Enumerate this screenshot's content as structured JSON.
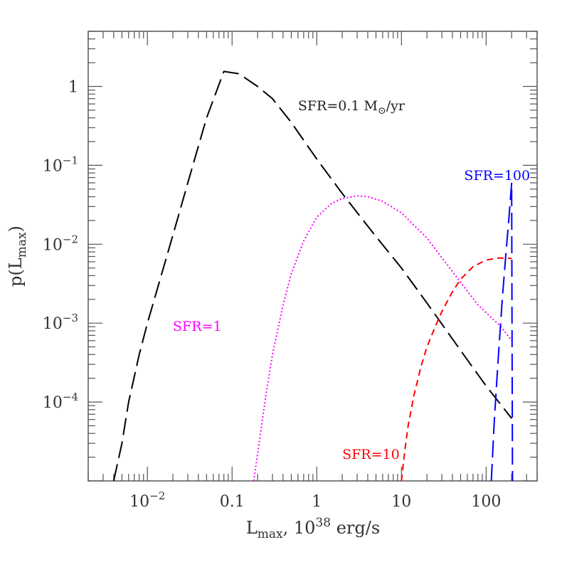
{
  "chart_data": {
    "type": "line",
    "title": "",
    "xlabel": {
      "main": "L",
      "sub": "max",
      "rest": ", 10",
      "sup": "38",
      "unit": " erg/s"
    },
    "ylabel": {
      "main": "p(L",
      "sub": "max",
      "end": ")"
    },
    "x_scale": "log",
    "y_scale": "log",
    "xlim": [
      0.002,
      400
    ],
    "ylim": [
      1e-05,
      5
    ],
    "x_ticks": [
      {
        "value": 0.01,
        "base": "10",
        "exp": "−2"
      },
      {
        "value": 0.1,
        "text": "0.1"
      },
      {
        "value": 1,
        "text": "1"
      },
      {
        "value": 10,
        "text": "10"
      },
      {
        "value": 100,
        "text": "100"
      }
    ],
    "y_ticks": [
      {
        "value": 1,
        "text": "1"
      },
      {
        "value": 0.1,
        "base": "10",
        "exp": "−1"
      },
      {
        "value": 0.01,
        "base": "10",
        "exp": "−2"
      },
      {
        "value": 0.001,
        "base": "10",
        "exp": "−3"
      },
      {
        "value": 0.0001,
        "base": "10",
        "exp": "−4"
      }
    ],
    "grid": false,
    "legend": "none",
    "series": [
      {
        "label": "SFR=0.1 M☉/yr",
        "label_main": "SFR=0.1 M",
        "label_sub": "⊙",
        "label_end": "/yr",
        "label_anchor": {
          "x": 0.6,
          "y": 0.5
        },
        "color": "#000000",
        "dash": "24 9",
        "width": 2,
        "x": [
          0.004,
          0.005,
          0.006,
          0.008,
          0.01,
          0.015,
          0.02,
          0.03,
          0.05,
          0.08,
          0.12,
          0.2,
          0.3,
          0.5,
          1,
          2,
          5,
          10,
          20,
          50,
          100,
          200
        ],
        "y": [
          1e-05,
          3e-05,
          0.0001,
          0.0004,
          0.001,
          0.0045,
          0.013,
          0.06,
          0.4,
          1.55,
          1.45,
          1.0,
          0.7,
          0.35,
          0.12,
          0.044,
          0.0125,
          0.005,
          0.0018,
          0.00045,
          0.00016,
          6.2e-05
        ]
      },
      {
        "label": "SFR=1",
        "label_anchor": {
          "x": 0.02,
          "y": 0.0008
        },
        "color": "#ff00ff",
        "dash": "2 3",
        "width": 2,
        "x": [
          0.18,
          0.2,
          0.25,
          0.3,
          0.4,
          0.5,
          0.7,
          1,
          1.5,
          2,
          3,
          4,
          6,
          10,
          20,
          40,
          80,
          150,
          200
        ],
        "y": [
          1e-05,
          2.2e-05,
          0.00012,
          0.0004,
          0.0017,
          0.0042,
          0.011,
          0.022,
          0.033,
          0.038,
          0.041,
          0.04,
          0.035,
          0.025,
          0.012,
          0.0045,
          0.0017,
          0.0009,
          0.0006
        ]
      },
      {
        "label": "SFR=10",
        "label_anchor": {
          "x": 2,
          "y": 1.9e-05
        },
        "color": "#ff0000",
        "dash": "9 6",
        "width": 2,
        "x": [
          10,
          11,
          12,
          14,
          17,
          20,
          25,
          30,
          40,
          50,
          70,
          100,
          140,
          200
        ],
        "y": [
          1e-05,
          2.5e-05,
          5e-05,
          0.00012,
          0.00028,
          0.0005,
          0.0009,
          0.0014,
          0.0025,
          0.0036,
          0.0052,
          0.0063,
          0.0067,
          0.0066
        ]
      },
      {
        "label": "SFR=100",
        "label_anchor": {
          "x": 55,
          "y": 0.065
        },
        "color": "#0000ff",
        "dash": "24 9",
        "width": 2,
        "x": [
          115,
          125,
          140,
          155,
          170,
          185,
          200,
          202,
          205
        ],
        "y": [
          1e-05,
          6e-05,
          0.0004,
          0.002,
          0.007,
          0.02,
          0.06,
          0.001,
          1e-05
        ]
      }
    ]
  }
}
